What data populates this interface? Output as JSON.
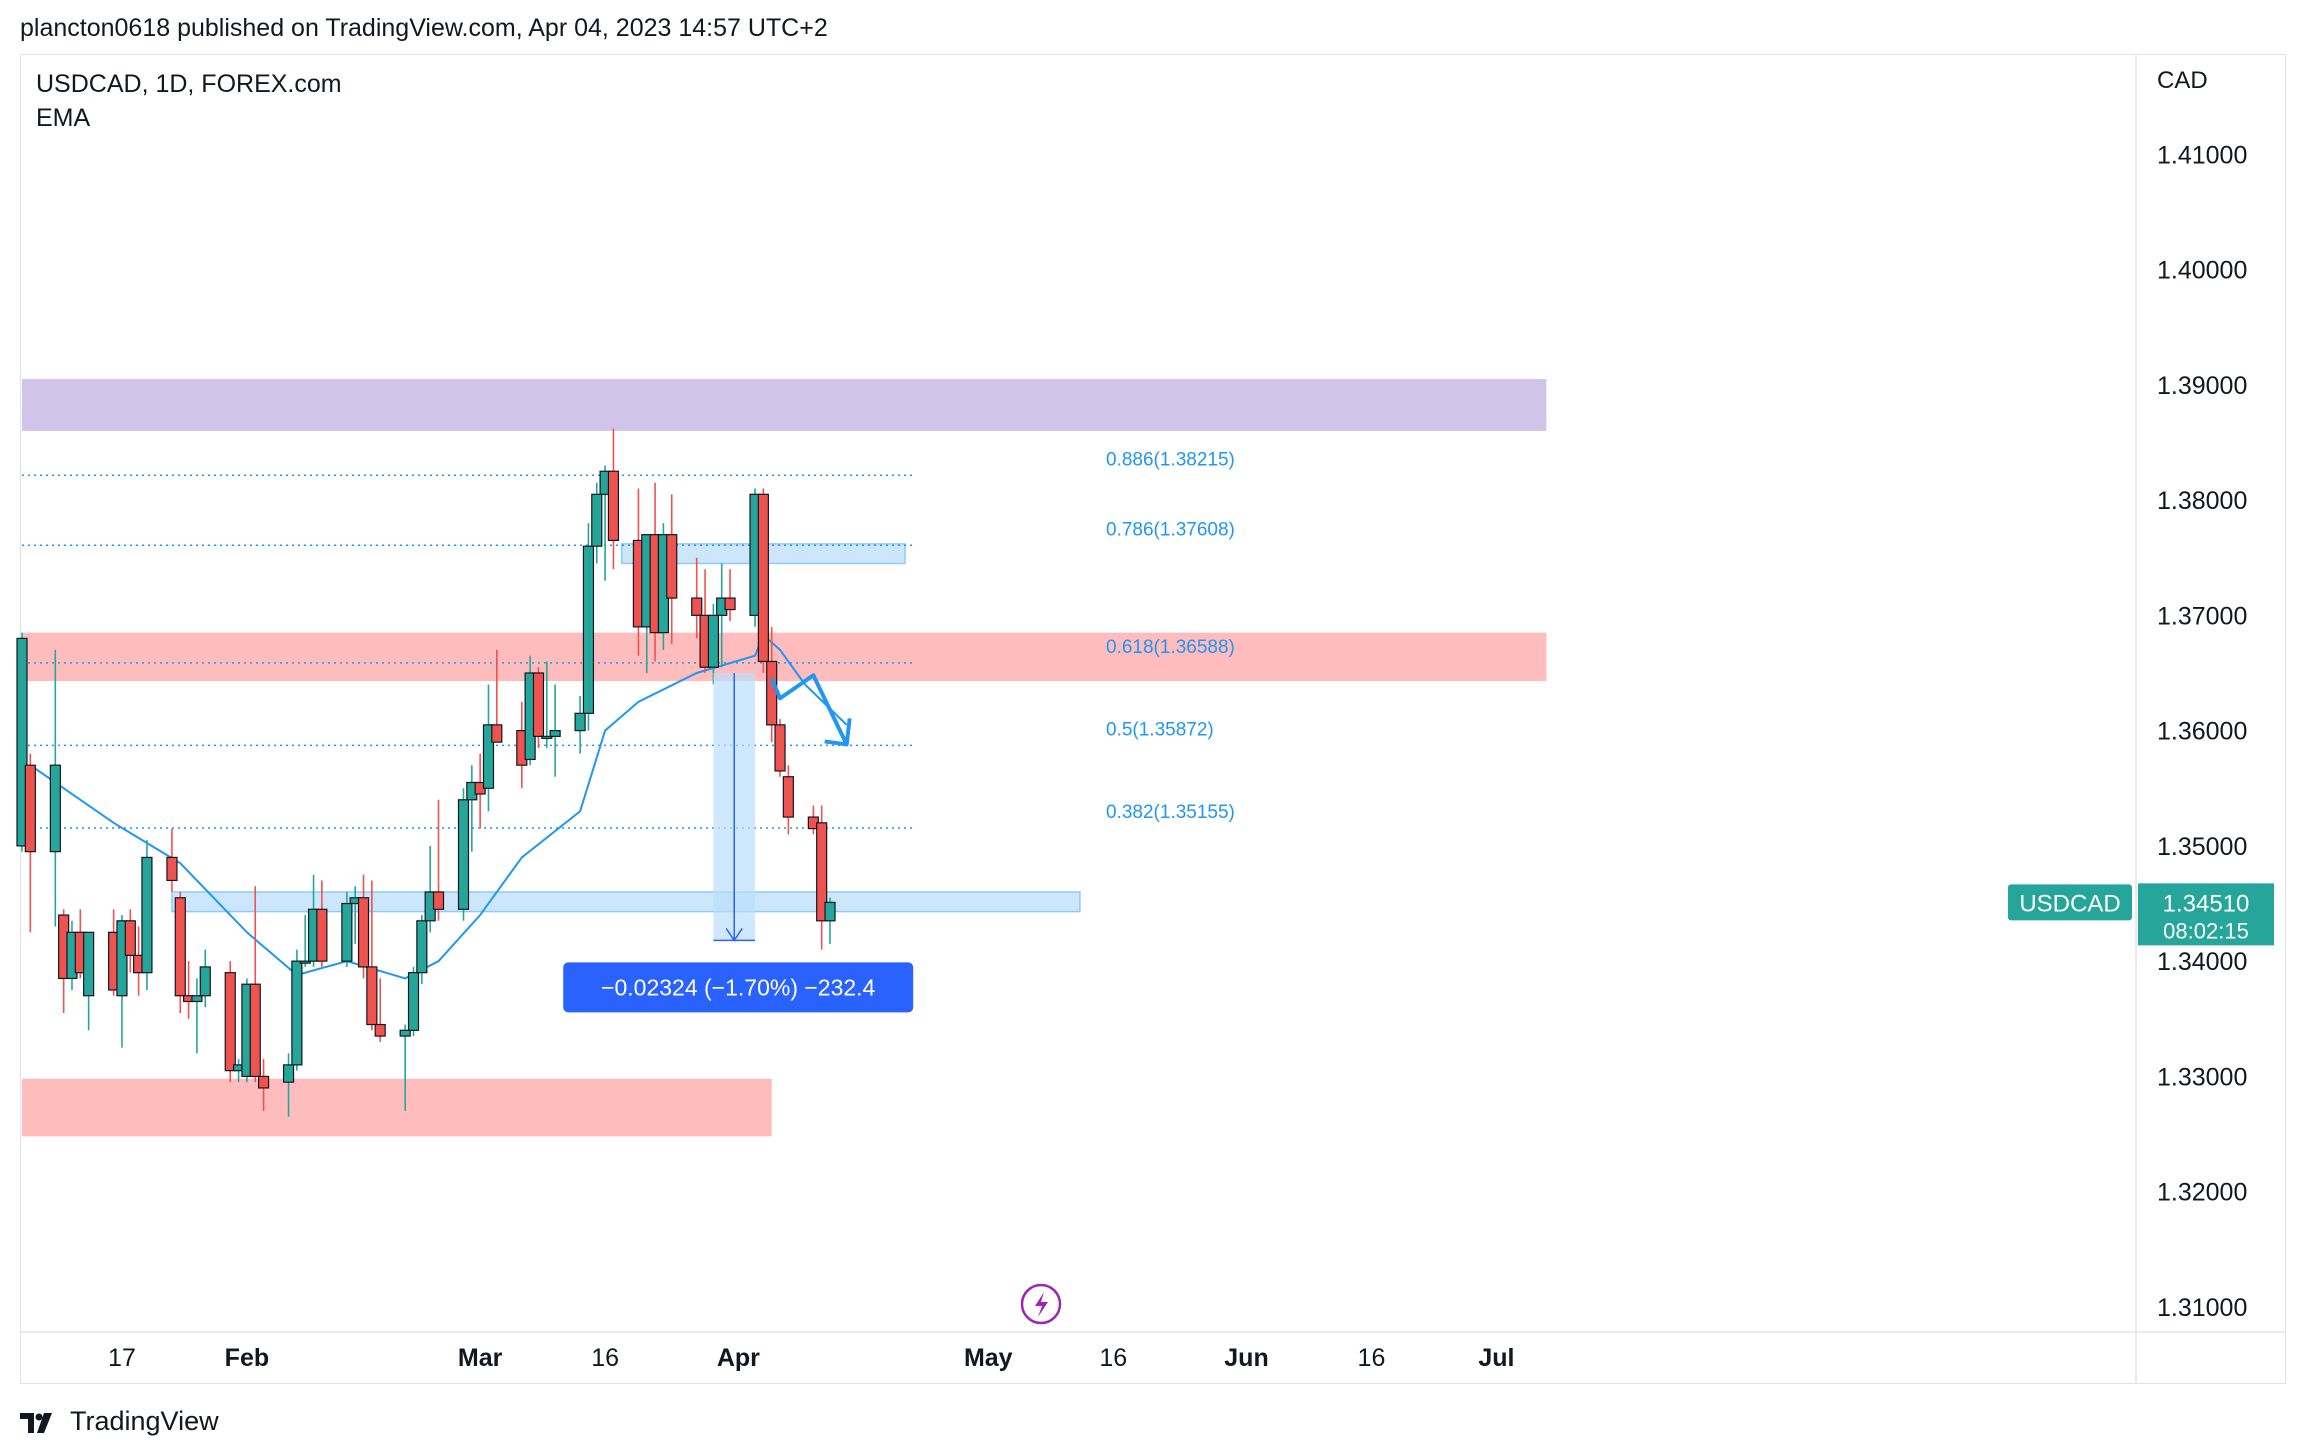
{
  "header": {
    "publish_line": "plancton0618 published on TradingView.com, Apr 04, 2023 14:57 UTC+2"
  },
  "chart_header": {
    "symbol": "USDCAD, 1D, FOREX.com",
    "indicator": "EMA"
  },
  "footer": {
    "brand": "TradingView"
  },
  "colors": {
    "bull": "#26a69a",
    "bear": "#ef5350",
    "ema": "#2196f3",
    "fib": "#2196f3",
    "zone_purple": "#d1c4e9",
    "zone_red": "#ffbcbc",
    "zone_blue": "#bbdefb",
    "measure_label_bg": "#2962ff",
    "price_badge": "#26a69a"
  },
  "chart_data": {
    "type": "candlestick",
    "symbol": "USDCAD",
    "interval": "1D",
    "currency_label": "CAD",
    "ylim": [
      1.31,
      1.42
    ],
    "y_ticks": [
      "1.41000",
      "1.40000",
      "1.39000",
      "1.38000",
      "1.37000",
      "1.36000",
      "1.35000",
      "1.34000",
      "1.33000",
      "1.32000",
      "1.31000"
    ],
    "y_tick_values": [
      1.41,
      1.4,
      1.39,
      1.38,
      1.37,
      1.36,
      1.35,
      1.34,
      1.33,
      1.32,
      1.31
    ],
    "x_ticks": [
      "17",
      "Feb",
      "Mar",
      "16",
      "Apr",
      "May",
      "16",
      "Jun",
      "16",
      "Jul"
    ],
    "x_tick_dates": [
      "2023-01-17",
      "2023-02-01",
      "2023-03-01",
      "2023-03-16",
      "2023-04-01",
      "2023-05-01",
      "2023-05-16",
      "2023-06-01",
      "2023-06-16",
      "2023-07-01"
    ],
    "x_range": [
      "2023-01-05",
      "2023-07-07"
    ],
    "candles": [
      {
        "date": "2023-01-05",
        "o": 1.35,
        "h": 1.3685,
        "l": 1.3495,
        "c": 1.368
      },
      {
        "date": "2023-01-06",
        "o": 1.357,
        "h": 1.358,
        "l": 1.3425,
        "c": 1.3495
      },
      {
        "date": "2023-01-09",
        "o": 1.3495,
        "h": 1.367,
        "l": 1.343,
        "c": 1.357
      },
      {
        "date": "2023-01-10",
        "o": 1.344,
        "h": 1.3445,
        "l": 1.3355,
        "c": 1.3385
      },
      {
        "date": "2023-01-11",
        "o": 1.3385,
        "h": 1.3435,
        "l": 1.3375,
        "c": 1.3425
      },
      {
        "date": "2023-01-12",
        "o": 1.3425,
        "h": 1.3445,
        "l": 1.3385,
        "c": 1.339
      },
      {
        "date": "2023-01-13",
        "o": 1.337,
        "h": 1.342,
        "l": 1.334,
        "c": 1.3425
      },
      {
        "date": "2023-01-16",
        "o": 1.3425,
        "h": 1.3445,
        "l": 1.337,
        "c": 1.3375
      },
      {
        "date": "2023-01-17",
        "o": 1.337,
        "h": 1.344,
        "l": 1.3325,
        "c": 1.3435
      },
      {
        "date": "2023-01-18",
        "o": 1.3435,
        "h": 1.3445,
        "l": 1.339,
        "c": 1.3405
      },
      {
        "date": "2023-01-19",
        "o": 1.3405,
        "h": 1.343,
        "l": 1.337,
        "c": 1.339
      },
      {
        "date": "2023-01-20",
        "o": 1.339,
        "h": 1.3505,
        "l": 1.3375,
        "c": 1.349
      },
      {
        "date": "2023-01-23",
        "o": 1.349,
        "h": 1.3515,
        "l": 1.346,
        "c": 1.347
      },
      {
        "date": "2023-01-24",
        "o": 1.3455,
        "h": 1.346,
        "l": 1.3355,
        "c": 1.337
      },
      {
        "date": "2023-01-25",
        "o": 1.337,
        "h": 1.34,
        "l": 1.335,
        "c": 1.3365
      },
      {
        "date": "2023-01-26",
        "o": 1.3365,
        "h": 1.3385,
        "l": 1.332,
        "c": 1.337
      },
      {
        "date": "2023-01-27",
        "o": 1.337,
        "h": 1.341,
        "l": 1.336,
        "c": 1.3395
      },
      {
        "date": "2023-01-30",
        "o": 1.339,
        "h": 1.34,
        "l": 1.3295,
        "c": 1.3305
      },
      {
        "date": "2023-01-31",
        "o": 1.3305,
        "h": 1.3315,
        "l": 1.3295,
        "c": 1.331
      },
      {
        "date": "2023-02-01",
        "o": 1.33,
        "h": 1.3385,
        "l": 1.3295,
        "c": 1.338
      },
      {
        "date": "2023-02-02",
        "o": 1.338,
        "h": 1.3465,
        "l": 1.3295,
        "c": 1.33
      },
      {
        "date": "2023-02-03",
        "o": 1.33,
        "h": 1.3315,
        "l": 1.327,
        "c": 1.329
      },
      {
        "date": "2023-02-06",
        "o": 1.3295,
        "h": 1.332,
        "l": 1.3265,
        "c": 1.331
      },
      {
        "date": "2023-02-07",
        "o": 1.331,
        "h": 1.341,
        "l": 1.3305,
        "c": 1.34
      },
      {
        "date": "2023-02-08",
        "o": 1.34,
        "h": 1.344,
        "l": 1.3395,
        "c": 1.34
      },
      {
        "date": "2023-02-09",
        "o": 1.34,
        "h": 1.3475,
        "l": 1.3395,
        "c": 1.3445
      },
      {
        "date": "2023-02-10",
        "o": 1.3445,
        "h": 1.347,
        "l": 1.3395,
        "c": 1.34
      },
      {
        "date": "2023-02-13",
        "o": 1.34,
        "h": 1.346,
        "l": 1.3395,
        "c": 1.345
      },
      {
        "date": "2023-02-14",
        "o": 1.345,
        "h": 1.3465,
        "l": 1.3415,
        "c": 1.3455
      },
      {
        "date": "2023-02-15",
        "o": 1.3455,
        "h": 1.3475,
        "l": 1.3385,
        "c": 1.3395
      },
      {
        "date": "2023-02-16",
        "o": 1.3395,
        "h": 1.347,
        "l": 1.334,
        "c": 1.3345
      },
      {
        "date": "2023-02-17",
        "o": 1.3345,
        "h": 1.3385,
        "l": 1.333,
        "c": 1.3335
      },
      {
        "date": "2023-02-20",
        "o": 1.3335,
        "h": 1.3345,
        "l": 1.327,
        "c": 1.334
      },
      {
        "date": "2023-02-21",
        "o": 1.334,
        "h": 1.3395,
        "l": 1.3335,
        "c": 1.339
      },
      {
        "date": "2023-02-22",
        "o": 1.339,
        "h": 1.344,
        "l": 1.338,
        "c": 1.3435
      },
      {
        "date": "2023-02-23",
        "o": 1.3435,
        "h": 1.35,
        "l": 1.3425,
        "c": 1.346
      },
      {
        "date": "2023-02-24",
        "o": 1.346,
        "h": 1.354,
        "l": 1.3435,
        "c": 1.3445
      },
      {
        "date": "2023-02-27",
        "o": 1.3445,
        "h": 1.355,
        "l": 1.3435,
        "c": 1.354
      },
      {
        "date": "2023-02-28",
        "o": 1.354,
        "h": 1.357,
        "l": 1.3495,
        "c": 1.3555
      },
      {
        "date": "2023-03-01",
        "o": 1.3555,
        "h": 1.358,
        "l": 1.3515,
        "c": 1.3545
      },
      {
        "date": "2023-03-02",
        "o": 1.355,
        "h": 1.364,
        "l": 1.353,
        "c": 1.3605
      },
      {
        "date": "2023-03-03",
        "o": 1.3605,
        "h": 1.367,
        "l": 1.359,
        "c": 1.359
      },
      {
        "date": "2023-03-06",
        "o": 1.36,
        "h": 1.3625,
        "l": 1.355,
        "c": 1.357
      },
      {
        "date": "2023-03-07",
        "o": 1.3575,
        "h": 1.3665,
        "l": 1.357,
        "c": 1.365
      },
      {
        "date": "2023-03-08",
        "o": 1.365,
        "h": 1.3655,
        "l": 1.3585,
        "c": 1.3595
      },
      {
        "date": "2023-03-09",
        "o": 1.3595,
        "h": 1.366,
        "l": 1.3585,
        "c": 1.3595
      },
      {
        "date": "2023-03-10",
        "o": 1.3595,
        "h": 1.364,
        "l": 1.356,
        "c": 1.36
      },
      {
        "date": "2023-03-13",
        "o": 1.36,
        "h": 1.363,
        "l": 1.358,
        "c": 1.3615
      },
      {
        "date": "2023-03-14",
        "o": 1.3615,
        "h": 1.378,
        "l": 1.36,
        "c": 1.376
      },
      {
        "date": "2023-03-15",
        "o": 1.376,
        "h": 1.3815,
        "l": 1.3745,
        "c": 1.3805
      },
      {
        "date": "2023-03-16",
        "o": 1.3805,
        "h": 1.383,
        "l": 1.373,
        "c": 1.3825
      },
      {
        "date": "2023-03-17",
        "o": 1.3825,
        "h": 1.3862,
        "l": 1.374,
        "c": 1.3765
      },
      {
        "date": "2023-03-20",
        "o": 1.3765,
        "h": 1.381,
        "l": 1.3665,
        "c": 1.369
      },
      {
        "date": "2023-03-21",
        "o": 1.369,
        "h": 1.3765,
        "l": 1.365,
        "c": 1.377
      },
      {
        "date": "2023-03-22",
        "o": 1.377,
        "h": 1.3815,
        "l": 1.366,
        "c": 1.3685
      },
      {
        "date": "2023-03-23",
        "o": 1.3685,
        "h": 1.378,
        "l": 1.367,
        "c": 1.377
      },
      {
        "date": "2023-03-24",
        "o": 1.377,
        "h": 1.3805,
        "l": 1.3675,
        "c": 1.3715
      },
      {
        "date": "2023-03-27",
        "o": 1.3715,
        "h": 1.375,
        "l": 1.368,
        "c": 1.37
      },
      {
        "date": "2023-03-28",
        "o": 1.37,
        "h": 1.374,
        "l": 1.365,
        "c": 1.3655
      },
      {
        "date": "2023-03-29",
        "o": 1.3655,
        "h": 1.371,
        "l": 1.364,
        "c": 1.37
      },
      {
        "date": "2023-03-30",
        "o": 1.37,
        "h": 1.3745,
        "l": 1.3655,
        "c": 1.3715
      },
      {
        "date": "2023-03-31",
        "o": 1.3715,
        "h": 1.374,
        "l": 1.3695,
        "c": 1.3705
      },
      {
        "date": "2023-04-03",
        "o": 1.37,
        "h": 1.381,
        "l": 1.369,
        "c": 1.3805
      },
      {
        "date": "2023-04-04",
        "o": 1.3805,
        "h": 1.381,
        "l": 1.365,
        "c": 1.366
      },
      {
        "date": "2023-04-05",
        "o": 1.366,
        "h": 1.369,
        "l": 1.359,
        "c": 1.3605
      },
      {
        "date": "2023-04-06",
        "o": 1.3605,
        "h": 1.361,
        "l": 1.356,
        "c": 1.3565
      },
      {
        "date": "2023-04-07",
        "o": 1.356,
        "h": 1.357,
        "l": 1.351,
        "c": 1.3525
      },
      {
        "date": "2023-04-10",
        "o": 1.3525,
        "h": 1.3535,
        "l": 1.351,
        "c": 1.3515
      },
      {
        "date": "2023-04-11",
        "o": 1.352,
        "h": 1.3535,
        "l": 1.341,
        "c": 1.3435
      },
      {
        "date": "2023-04-12",
        "o": 1.3435,
        "h": 1.3455,
        "l": 1.3415,
        "c": 1.3451
      }
    ],
    "ema": [
      {
        "date": "2023-01-06",
        "v": 1.357
      },
      {
        "date": "2023-01-16",
        "v": 1.352
      },
      {
        "date": "2023-01-24",
        "v": 1.3485
      },
      {
        "date": "2023-02-01",
        "v": 1.3425
      },
      {
        "date": "2023-02-07",
        "v": 1.3388
      },
      {
        "date": "2023-02-13",
        "v": 1.34
      },
      {
        "date": "2023-02-20",
        "v": 1.3385
      },
      {
        "date": "2023-02-24",
        "v": 1.34
      },
      {
        "date": "2023-03-01",
        "v": 1.344
      },
      {
        "date": "2023-03-06",
        "v": 1.349
      },
      {
        "date": "2023-03-13",
        "v": 1.353
      },
      {
        "date": "2023-03-16",
        "v": 1.36
      },
      {
        "date": "2023-03-20",
        "v": 1.3625
      },
      {
        "date": "2023-03-27",
        "v": 1.365
      },
      {
        "date": "2023-04-03",
        "v": 1.3665
      },
      {
        "date": "2023-04-04",
        "v": 1.3683
      },
      {
        "date": "2023-04-06",
        "v": 1.367
      },
      {
        "date": "2023-04-09",
        "v": 1.364
      },
      {
        "date": "2023-04-14",
        "v": 1.3605
      }
    ],
    "fib_levels": [
      {
        "label": "0.886(1.38215)",
        "value": 1.38215
      },
      {
        "label": "0.786(1.37608)",
        "value": 1.37608
      },
      {
        "label": "0.618(1.36588)",
        "value": 1.36588
      },
      {
        "label": "0.5(1.35872)",
        "value": 1.35872
      },
      {
        "label": "0.382(1.35155)",
        "value": 1.35155
      }
    ],
    "fib_range": {
      "from": "2023-01-05",
      "to": "2023-04-22"
    },
    "zones": [
      {
        "kind": "purple",
        "from": "2023-01-05",
        "to": "2023-07-07",
        "top": 1.3905,
        "bottom": 1.386
      },
      {
        "kind": "red",
        "from": "2023-01-05",
        "to": "2023-07-07",
        "top": 1.3685,
        "bottom": 1.3643
      },
      {
        "kind": "red",
        "from": "2023-01-05",
        "to": "2023-04-05",
        "top": 1.3298,
        "bottom": 1.3248
      },
      {
        "kind": "blue",
        "from": "2023-01-23",
        "to": "2023-05-12",
        "top": 1.346,
        "bottom": 1.3443
      },
      {
        "kind": "blue",
        "from": "2023-03-18",
        "to": "2023-04-21",
        "top": 1.3762,
        "bottom": 1.3745
      }
    ],
    "projection_path": [
      {
        "date": "2023-04-05",
        "v": 1.3645
      },
      {
        "date": "2023-04-06",
        "v": 1.3628
      },
      {
        "date": "2023-04-10",
        "v": 1.3648
      },
      {
        "date": "2023-04-14",
        "v": 1.3588
      }
    ],
    "measure": {
      "from_date": "2023-03-29",
      "to_date": "2023-04-03",
      "start": 1.365,
      "end": 1.3418,
      "label": "−0.02324 (−1.70%) −232.4"
    },
    "last_price": {
      "label": "USDCAD",
      "value": "1.34510",
      "countdown": "08:02:15",
      "v": 1.3451
    }
  }
}
